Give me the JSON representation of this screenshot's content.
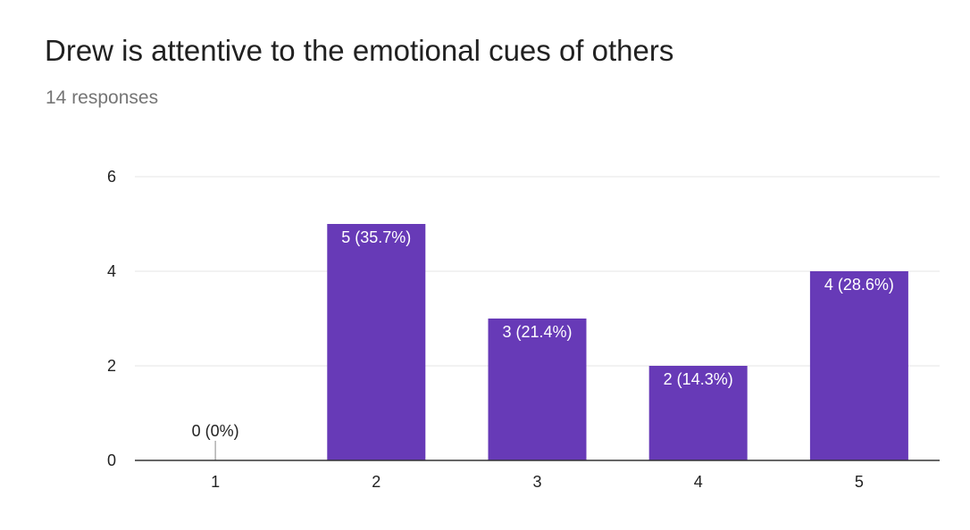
{
  "title": "Drew is attentive to the emotional cues of others",
  "subtitle": "14 responses",
  "colors": {
    "bar": "#673AB7",
    "grid": "#e6e6e6",
    "axis": "#333333"
  },
  "chart_data": {
    "type": "bar",
    "title": "Drew is attentive to the emotional cues of others",
    "categories": [
      "1",
      "2",
      "3",
      "4",
      "5"
    ],
    "values": [
      0,
      5,
      3,
      2,
      4
    ],
    "data_labels": [
      "0 (0%)",
      "5 (35.7%)",
      "3 (21.4%)",
      "2 (14.3%)",
      "4 (28.6%)"
    ],
    "yticks": [
      0,
      2,
      4,
      6
    ],
    "ylim": [
      0,
      6
    ],
    "xlabel": "",
    "ylabel": "",
    "grid": true,
    "legend": "none"
  }
}
